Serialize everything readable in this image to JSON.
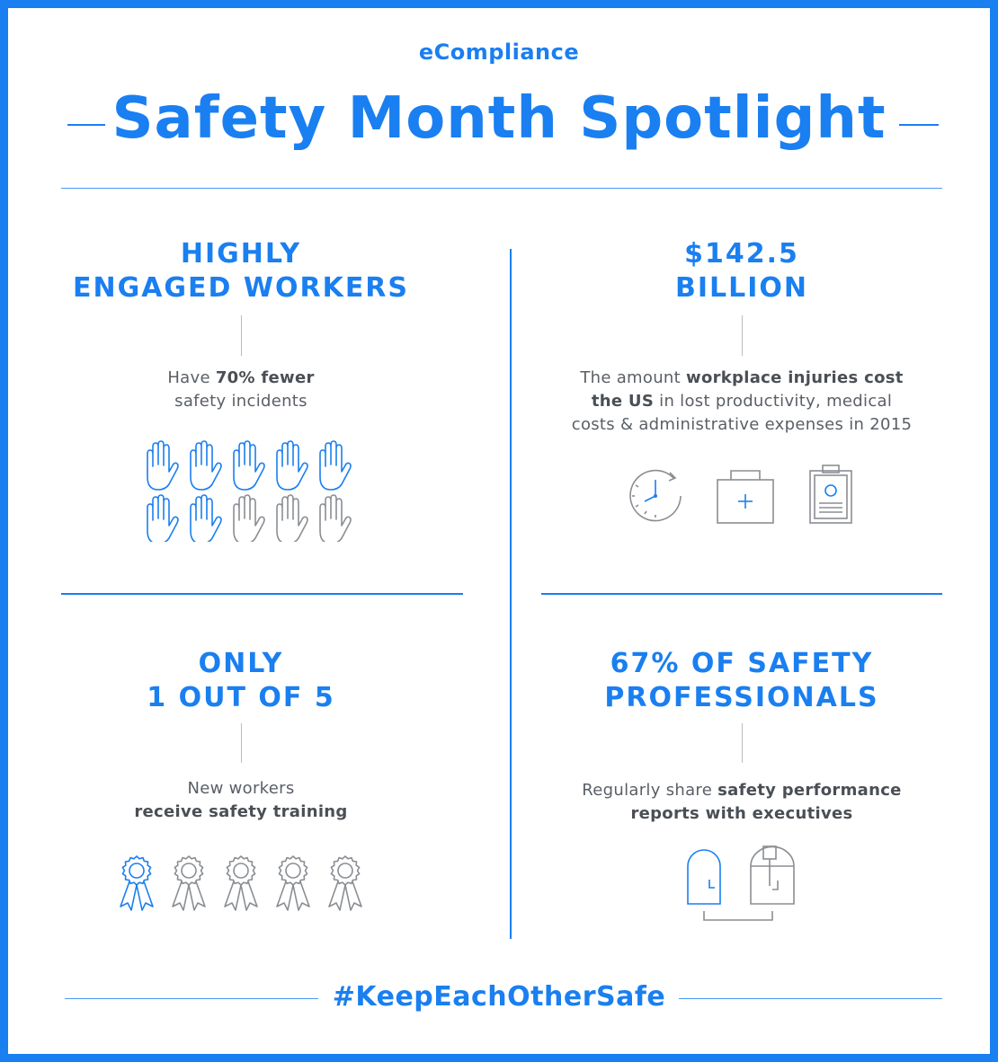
{
  "brand": "eCompliance",
  "title": "Safety Month Spotlight",
  "sections": [
    {
      "heading_line1": "HIGHLY",
      "heading_line2": "ENGAGED WORKERS",
      "text_pre": "Have ",
      "text_bold": "70% fewer",
      "text_post": "safety incidents",
      "icon_total": 10,
      "icon_highlighted": 7
    },
    {
      "heading_line1": "$142.5",
      "heading_line2": "BILLION",
      "text_pre": "The amount ",
      "text_bold1": "workplace injuries cost",
      "text_bold2": "the US",
      "text_post1": " in lost productivity, medical",
      "text_post2": "costs & administrative expenses in 2015",
      "icons": [
        "clock-icon",
        "first-aid-kit-icon",
        "clipboard-icon"
      ]
    },
    {
      "heading_line1": "ONLY",
      "heading_line2": "1 OUT OF 5",
      "text_line1": "New workers",
      "text_bold": "receive safety training",
      "icon_total": 5,
      "icon_highlighted": 1
    },
    {
      "heading_line1": "67% OF SAFETY",
      "heading_line2": "PROFESSIONALS",
      "text_pre": "Regularly share ",
      "text_bold1": "safety performance",
      "text_bold2": "reports with executives",
      "icons": [
        "person-icon",
        "executive-icon"
      ]
    }
  ],
  "hashtag": "#KeepEachOtherSafe",
  "colors": {
    "accent": "#1a7ff0",
    "icon_gray": "#8a8e93",
    "text": "#5a5f66"
  }
}
